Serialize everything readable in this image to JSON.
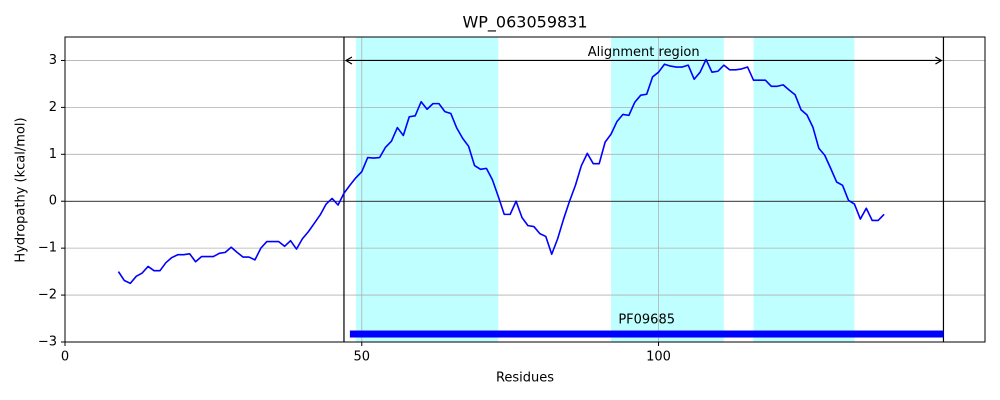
{
  "chart_data": {
    "type": "line",
    "title": "WP_063059831",
    "xlabel": "Residues",
    "ylabel": "Hydropathy (kcal/mol)",
    "x": [
      9,
      10,
      11,
      12,
      13,
      14,
      15,
      16,
      17,
      18,
      19,
      20,
      21,
      22,
      23,
      24,
      25,
      26,
      27,
      28,
      29,
      30,
      31,
      32,
      33,
      34,
      35,
      36,
      37,
      38,
      39,
      40,
      41,
      42,
      43,
      44,
      45,
      46,
      47,
      48,
      49,
      50,
      51,
      52,
      53,
      54,
      55,
      56,
      57,
      58,
      59,
      60,
      61,
      62,
      63,
      64,
      65,
      66,
      67,
      68,
      69,
      70,
      71,
      72,
      73,
      74,
      75,
      76,
      77,
      78,
      79,
      80,
      81,
      82,
      83,
      84,
      85,
      86,
      87,
      88,
      89,
      90,
      91,
      92,
      93,
      94,
      95,
      96,
      97,
      98,
      99,
      100,
      101,
      102,
      103,
      104,
      105,
      106,
      107,
      108,
      109,
      110,
      111,
      112,
      113,
      114,
      115,
      116,
      117,
      118,
      119,
      120,
      121,
      122,
      123,
      124,
      125,
      126,
      127,
      128,
      129,
      130,
      131,
      132,
      133,
      134,
      135,
      136,
      137,
      138
    ],
    "values": [
      -1.5,
      -1.69,
      -1.75,
      -1.6,
      -1.53,
      -1.39,
      -1.48,
      -1.48,
      -1.31,
      -1.2,
      -1.14,
      -1.14,
      -1.12,
      -1.29,
      -1.18,
      -1.18,
      -1.18,
      -1.11,
      -1.09,
      -0.98,
      -1.09,
      -1.19,
      -1.19,
      -1.25,
      -1.0,
      -0.86,
      -0.86,
      -0.86,
      -0.96,
      -0.84,
      -1.02,
      -0.8,
      -0.65,
      -0.47,
      -0.29,
      -0.06,
      0.06,
      -0.08,
      0.17,
      0.34,
      0.5,
      0.63,
      0.93,
      0.92,
      0.93,
      1.15,
      1.28,
      1.57,
      1.4,
      1.8,
      1.82,
      2.12,
      1.96,
      2.08,
      2.08,
      1.91,
      1.87,
      1.56,
      1.34,
      1.17,
      0.76,
      0.68,
      0.7,
      0.46,
      0.1,
      -0.28,
      -0.28,
      0.0,
      -0.35,
      -0.52,
      -0.54,
      -0.69,
      -0.75,
      -1.13,
      -0.8,
      -0.38,
      0.0,
      0.34,
      0.76,
      1.02,
      0.8,
      0.8,
      1.26,
      1.43,
      1.7,
      1.85,
      1.83,
      2.11,
      2.26,
      2.28,
      2.65,
      2.75,
      2.92,
      2.88,
      2.86,
      2.86,
      2.9,
      2.6,
      2.75,
      3.02,
      2.75,
      2.77,
      2.9,
      2.8,
      2.8,
      2.82,
      2.86,
      2.58,
      2.58,
      2.58,
      2.45,
      2.45,
      2.48,
      2.37,
      2.27,
      1.95,
      1.84,
      1.58,
      1.13,
      0.98,
      0.7,
      0.41,
      0.34,
      0.02,
      -0.06,
      -0.38,
      -0.15,
      -0.41,
      -0.41,
      -0.28
    ],
    "color": "#0000ff",
    "xlim": [
      0,
      155
    ],
    "ylim": [
      -3,
      3.5
    ],
    "xticks": [
      0,
      50,
      100
    ],
    "yticks": [
      {
        "value": -3,
        "label": "−3"
      },
      {
        "value": -2,
        "label": "−2"
      },
      {
        "value": -1,
        "label": "−1"
      },
      0,
      1,
      2,
      3
    ],
    "grid": true,
    "reference_line": 0,
    "shaded_regions": [
      [
        49,
        73
      ],
      [
        92,
        111
      ],
      [
        116,
        133
      ]
    ],
    "region_color": "#c0ffff",
    "alignment": {
      "label": "Alignment region",
      "start": 47,
      "end": 148,
      "y": 3
    },
    "domain": {
      "label": "PF09685",
      "start": 48,
      "end": 148,
      "y": -2.83,
      "color": "#0000ff"
    }
  }
}
